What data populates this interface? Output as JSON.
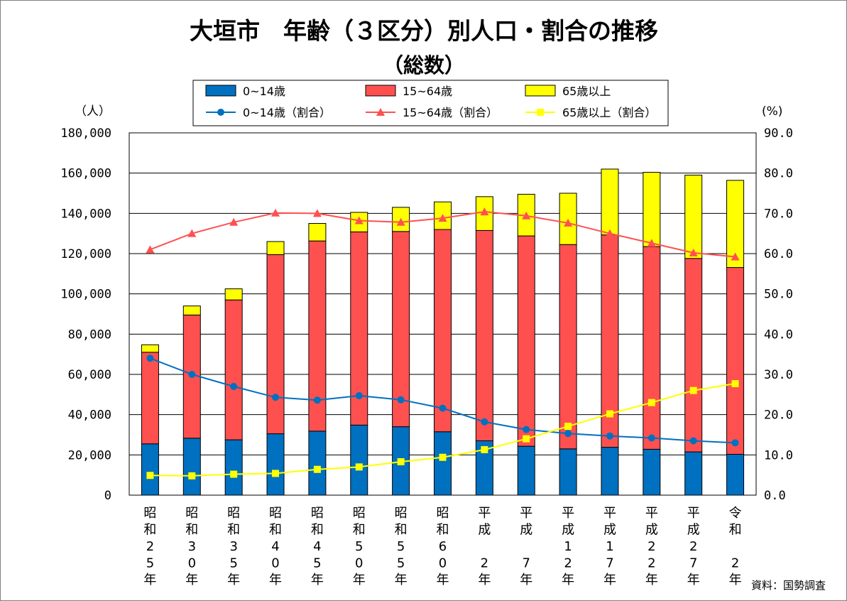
{
  "chart_data": {
    "type": "bar",
    "title": "大垣市　年齢（３区分）別人口・割合の推移",
    "subtitle": "（総数）",
    "y_left_unit": "（人）",
    "y_right_unit": "(%)",
    "y_left_ticks": [
      "0",
      "20,000",
      "40,000",
      "60,000",
      "80,000",
      "100,000",
      "120,000",
      "140,000",
      "160,000",
      "180,000"
    ],
    "y_right_ticks": [
      "0.0",
      "10.0",
      "20.0",
      "30.0",
      "40.0",
      "50.0",
      "60.0",
      "70.0",
      "80.0",
      "90.0"
    ],
    "ylim_left": [
      0,
      180000
    ],
    "ylim_right": [
      0,
      90
    ],
    "stacked": true,
    "grid": "horizontal",
    "legend_position": "top",
    "categories": [
      [
        "昭",
        "和",
        "2",
        "5",
        "年"
      ],
      [
        "昭",
        "和",
        "3",
        "0",
        "年"
      ],
      [
        "昭",
        "和",
        "3",
        "5",
        "年"
      ],
      [
        "昭",
        "和",
        "4",
        "0",
        "年"
      ],
      [
        "昭",
        "和",
        "4",
        "5",
        "年"
      ],
      [
        "昭",
        "和",
        "5",
        "0",
        "年"
      ],
      [
        "昭",
        "和",
        "5",
        "5",
        "年"
      ],
      [
        "昭",
        "和",
        "6",
        "0",
        "年"
      ],
      [
        "平",
        "成",
        "",
        "2",
        "年"
      ],
      [
        "平",
        "成",
        "",
        "7",
        "年"
      ],
      [
        "平",
        "成",
        "1",
        "2",
        "年"
      ],
      [
        "平",
        "成",
        "1",
        "7",
        "年"
      ],
      [
        "平",
        "成",
        "2",
        "2",
        "年"
      ],
      [
        "平",
        "成",
        "2",
        "7",
        "年"
      ],
      [
        "令",
        "和",
        "",
        "2",
        "年"
      ]
    ],
    "bar_series": [
      {
        "name": "0~14歳",
        "color": "#0070C0",
        "values": [
          25500,
          28300,
          27500,
          30500,
          31800,
          34800,
          34000,
          31500,
          27000,
          24300,
          23000,
          23800,
          22800,
          21500,
          20300
        ]
      },
      {
        "name": "15~64歳",
        "color": "#FF5050",
        "values": [
          45500,
          61200,
          69500,
          89000,
          94500,
          96000,
          97000,
          100500,
          104500,
          104500,
          101500,
          105500,
          100700,
          96100,
          92800
        ]
      },
      {
        "name": "65歳以上",
        "color": "#FFFF00",
        "values": [
          3700,
          4500,
          5500,
          6500,
          8700,
          9700,
          12000,
          13700,
          16800,
          20700,
          25500,
          32700,
          36900,
          41400,
          43300
        ]
      }
    ],
    "line_series": [
      {
        "name": "0~14歳（割合）",
        "color": "#0070C0",
        "marker": "circle",
        "values": [
          34.0,
          30.0,
          27.0,
          24.3,
          23.6,
          24.7,
          23.7,
          21.6,
          18.2,
          16.3,
          15.3,
          14.7,
          14.2,
          13.5,
          13.0
        ]
      },
      {
        "name": "15~64歳（割合）",
        "color": "#FF5050",
        "marker": "triangle",
        "values": [
          61.0,
          65.0,
          67.8,
          70.1,
          70.0,
          68.2,
          67.8,
          68.8,
          70.4,
          69.4,
          67.6,
          65.0,
          62.6,
          60.2,
          59.2
        ]
      },
      {
        "name": "65歳以上（割合）",
        "color": "#FFFF00",
        "marker": "square",
        "values": [
          4.9,
          4.8,
          5.2,
          5.4,
          6.4,
          7.0,
          8.3,
          9.4,
          11.3,
          14.0,
          17.1,
          20.2,
          23.0,
          26.0,
          27.7
        ]
      }
    ],
    "source": "資料：国勢調査"
  }
}
